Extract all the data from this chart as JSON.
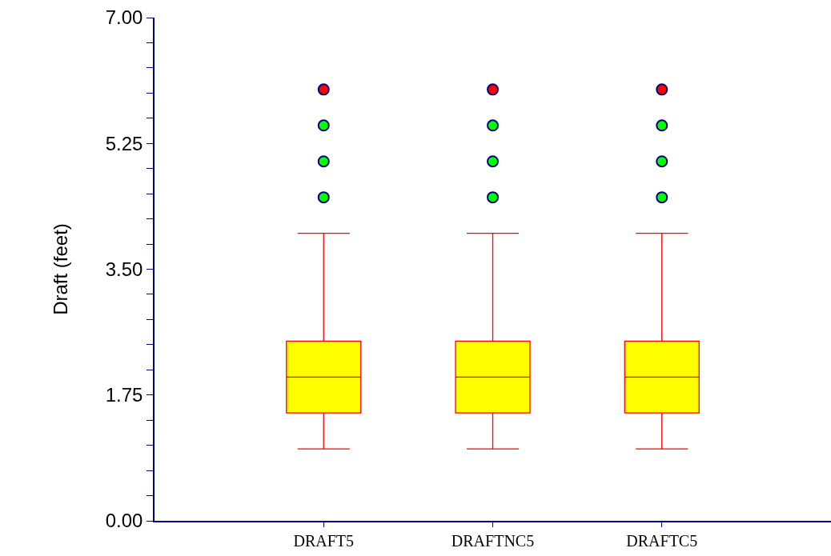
{
  "chart_data": {
    "type": "box",
    "ylabel": "Draft (feet)",
    "categories": [
      "DRAFT5",
      "DRAFTNC5",
      "DRAFTC5"
    ],
    "series": [
      {
        "color": "#ffff00",
        "boxes": [
          {
            "low": 1.0,
            "q1": 1.5,
            "median": 2.0,
            "q3": 2.5,
            "high": 4.0
          },
          {
            "low": 1.0,
            "q1": 1.5,
            "median": 2.0,
            "q3": 2.5,
            "high": 4.0
          },
          {
            "low": 1.0,
            "q1": 1.5,
            "median": 2.0,
            "q3": 2.5,
            "high": 4.0
          }
        ]
      },
      {
        "type": "scatter",
        "color": "#00ff00",
        "x": [
          "DRAFT5",
          "DRAFT5",
          "DRAFT5",
          "DRAFTNC5",
          "DRAFTNC5",
          "DRAFTNC5",
          "DRAFTC5",
          "DRAFTC5",
          "DRAFTC5"
        ],
        "values": [
          4.5,
          5.0,
          5.5,
          4.5,
          5.0,
          5.5,
          4.5,
          5.0,
          5.5
        ]
      },
      {
        "type": "scatter",
        "color": "#ff0000",
        "x": [
          "DRAFT5",
          "DRAFTNC5",
          "DRAFTC5"
        ],
        "values": [
          6.0,
          6.0,
          6.0
        ]
      }
    ],
    "ylim": [
      0,
      7
    ],
    "yticks": [
      {
        "value": 0,
        "label": "0.00"
      },
      {
        "value": 0.35,
        "label": null
      },
      {
        "value": 0.7,
        "label": null
      },
      {
        "value": 1.05,
        "label": null
      },
      {
        "value": 1.4,
        "label": null
      },
      {
        "value": 1.75,
        "label": "1.75"
      },
      {
        "value": 2.1,
        "label": null
      },
      {
        "value": 2.45,
        "label": null
      },
      {
        "value": 2.8,
        "label": null
      },
      {
        "value": 3.15,
        "label": null
      },
      {
        "value": 3.5,
        "label": "3.50"
      },
      {
        "value": 3.85,
        "label": null
      },
      {
        "value": 4.2,
        "label": null
      },
      {
        "value": 4.55,
        "label": null
      },
      {
        "value": 4.9,
        "label": null
      },
      {
        "value": 5.25,
        "label": "5.25"
      },
      {
        "value": 5.6,
        "label": null
      },
      {
        "value": 5.95,
        "label": null
      },
      {
        "value": 6.3,
        "label": null
      },
      {
        "value": 6.65,
        "label": null
      },
      {
        "value": 7,
        "label": "7.00"
      }
    ],
    "marker": "circle"
  }
}
